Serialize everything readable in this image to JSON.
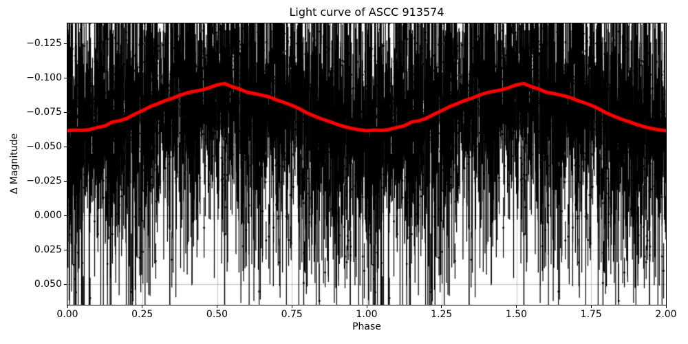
{
  "chart_data": {
    "type": "scatter",
    "title": "Light curve of ASCC 913574",
    "xlabel": "Phase",
    "ylabel": "Δ Magnitude",
    "xlim": [
      0,
      2
    ],
    "ylim": [
      0.065,
      -0.1395
    ],
    "y_axis_inverted": true,
    "grid": true,
    "legend": "none",
    "x_ticks": {
      "values": [
        0.0,
        0.25,
        0.5,
        0.75,
        1.0,
        1.25,
        1.5,
        1.75,
        2.0
      ],
      "labels": [
        "0.00",
        "0.25",
        "0.50",
        "0.75",
        "1.00",
        "1.25",
        "1.50",
        "1.75",
        "2.00"
      ]
    },
    "y_ticks": {
      "values": [
        -0.125,
        -0.1,
        -0.075,
        -0.05,
        -0.025,
        0.0,
        0.025,
        0.05
      ],
      "labels": [
        "−0.125",
        "−0.100",
        "−0.075",
        "−0.050",
        "−0.025",
        "0.000",
        "0.025",
        "0.050"
      ]
    },
    "colors": {
      "data": "#000000",
      "mean_curve": "#ff0000",
      "grid": "#b0b0b0",
      "axes": "#000000",
      "background": "#ffffff"
    },
    "mean_curve": {
      "description": "Phase-binned running-mean magnitude of the folded light curve; same cycle repeated twice (phase 0-2). Brightest (most negative) near phase 0.5/1.5, faintest near phase 0/1/2.",
      "cycles": 2,
      "phase_start": 0,
      "phase_step": 0.025,
      "line_width": 5,
      "values": [
        -0.0615,
        -0.062,
        -0.0617,
        -0.0624,
        -0.0638,
        -0.065,
        -0.0678,
        -0.0688,
        -0.0706,
        -0.0735,
        -0.076,
        -0.0788,
        -0.081,
        -0.0832,
        -0.085,
        -0.0872,
        -0.089,
        -0.0902,
        -0.0912,
        -0.0928,
        -0.0948,
        -0.0958,
        -0.0935,
        -0.0918,
        -0.0895,
        -0.0885,
        -0.0873,
        -0.086,
        -0.0838,
        -0.082,
        -0.08,
        -0.0775,
        -0.0745,
        -0.0722,
        -0.07,
        -0.0682,
        -0.0662,
        -0.0645,
        -0.0632,
        -0.0622,
        -0.0615
      ]
    },
    "scatter_model": {
      "description": "Individual photometric measurements with vertical error bars (black dots, no caps), duplicated over two phase cycles; heavy-tailed scatter about the mean curve.",
      "seed": 913574,
      "n_per_cycle": 2500,
      "cycles": 2,
      "noise_components": [
        {
          "weight": 0.47,
          "sigma": 0.013
        },
        {
          "weight": 0.35,
          "sigma": 0.03
        },
        {
          "weight": 0.18,
          "sigma": 0.07
        }
      ],
      "err_base": 0.01,
      "err_sigma": 0.009,
      "err_tail_prob": 0.38,
      "err_tail_mean": 0.04,
      "err_max": 0.125,
      "dot_radius": 1.5,
      "bar_width": 1.25
    }
  }
}
